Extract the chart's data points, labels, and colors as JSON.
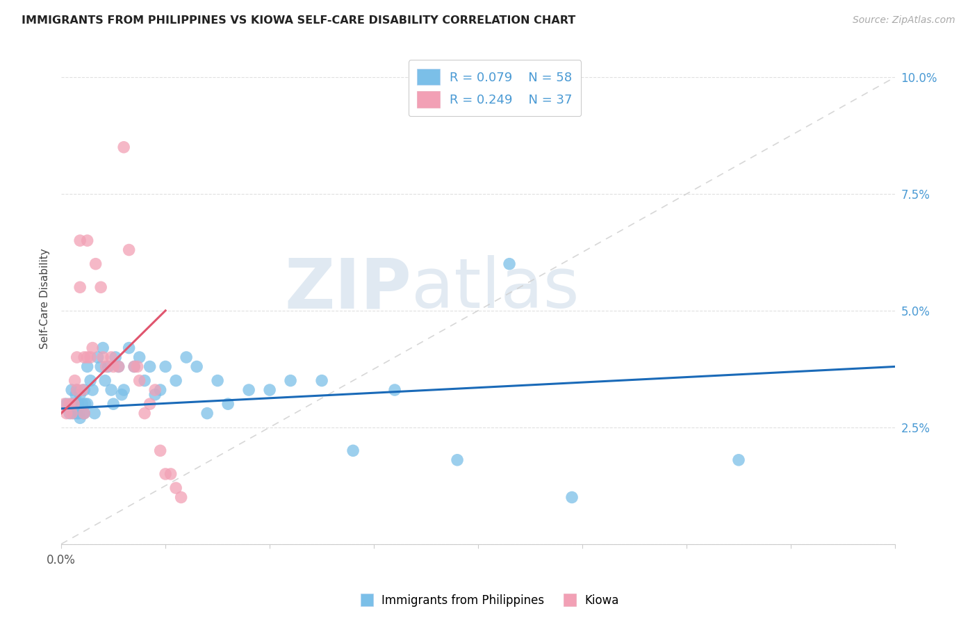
{
  "title": "IMMIGRANTS FROM PHILIPPINES VS KIOWA SELF-CARE DISABILITY CORRELATION CHART",
  "source": "Source: ZipAtlas.com",
  "ylabel": "Self-Care Disability",
  "xlim": [
    0.0,
    0.8
  ],
  "ylim": [
    0.0,
    0.105
  ],
  "xticks": [
    0.0,
    0.1,
    0.2,
    0.3,
    0.4,
    0.5,
    0.6,
    0.7,
    0.8
  ],
  "yticks": [
    0.0,
    0.025,
    0.05,
    0.075,
    0.1
  ],
  "ytick_labels": [
    "",
    "2.5%",
    "5.0%",
    "7.5%",
    "10.0%"
  ],
  "color_blue": "#7bbfe8",
  "color_pink": "#f2a0b5",
  "line_blue": "#1a6ab8",
  "line_pink": "#e0556e",
  "line_dashed": "#d0d0d0",
  "watermark_zip": "ZIP",
  "watermark_atlas": "atlas",
  "blue_scatter_x": [
    0.005,
    0.008,
    0.01,
    0.01,
    0.012,
    0.013,
    0.014,
    0.015,
    0.015,
    0.016,
    0.017,
    0.018,
    0.018,
    0.02,
    0.021,
    0.022,
    0.022,
    0.023,
    0.025,
    0.025,
    0.028,
    0.03,
    0.032,
    0.035,
    0.038,
    0.04,
    0.042,
    0.045,
    0.048,
    0.05,
    0.052,
    0.055,
    0.058,
    0.06,
    0.065,
    0.07,
    0.075,
    0.08,
    0.085,
    0.09,
    0.095,
    0.1,
    0.11,
    0.12,
    0.13,
    0.14,
    0.15,
    0.16,
    0.18,
    0.2,
    0.22,
    0.25,
    0.28,
    0.32,
    0.38,
    0.43,
    0.49,
    0.65
  ],
  "blue_scatter_y": [
    0.03,
    0.028,
    0.03,
    0.033,
    0.028,
    0.03,
    0.032,
    0.028,
    0.033,
    0.03,
    0.028,
    0.027,
    0.032,
    0.03,
    0.028,
    0.033,
    0.028,
    0.03,
    0.03,
    0.038,
    0.035,
    0.033,
    0.028,
    0.04,
    0.038,
    0.042,
    0.035,
    0.038,
    0.033,
    0.03,
    0.04,
    0.038,
    0.032,
    0.033,
    0.042,
    0.038,
    0.04,
    0.035,
    0.038,
    0.032,
    0.033,
    0.038,
    0.035,
    0.04,
    0.038,
    0.028,
    0.035,
    0.03,
    0.033,
    0.033,
    0.035,
    0.035,
    0.02,
    0.033,
    0.018,
    0.06,
    0.01,
    0.018
  ],
  "pink_scatter_x": [
    0.003,
    0.005,
    0.008,
    0.01,
    0.012,
    0.013,
    0.015,
    0.015,
    0.018,
    0.018,
    0.02,
    0.022,
    0.022,
    0.025,
    0.025,
    0.028,
    0.03,
    0.033,
    0.038,
    0.04,
    0.043,
    0.048,
    0.05,
    0.055,
    0.06,
    0.065,
    0.07,
    0.073,
    0.075,
    0.08,
    0.085,
    0.09,
    0.095,
    0.1,
    0.105,
    0.11,
    0.115
  ],
  "pink_scatter_y": [
    0.03,
    0.028,
    0.03,
    0.028,
    0.03,
    0.035,
    0.033,
    0.04,
    0.055,
    0.065,
    0.033,
    0.028,
    0.04,
    0.04,
    0.065,
    0.04,
    0.042,
    0.06,
    0.055,
    0.04,
    0.038,
    0.04,
    0.038,
    0.038,
    0.085,
    0.063,
    0.038,
    0.038,
    0.035,
    0.028,
    0.03,
    0.033,
    0.02,
    0.015,
    0.015,
    0.012,
    0.01
  ],
  "blue_line_x": [
    0.0,
    0.8
  ],
  "blue_line_y": [
    0.029,
    0.038
  ],
  "pink_line_x": [
    0.0,
    0.1
  ],
  "pink_line_y": [
    0.028,
    0.05
  ]
}
